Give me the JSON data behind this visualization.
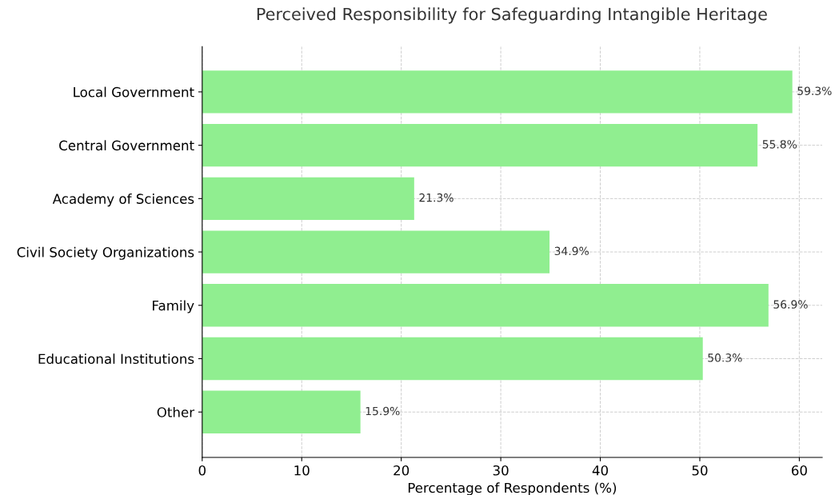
{
  "chart_data": {
    "type": "bar",
    "orientation": "horizontal",
    "title": "Perceived Responsibility for Safeguarding Intangible Heritage",
    "xlabel": "Percentage of Respondents (%)",
    "categories": [
      "Local Government",
      "Central Government",
      "Academy of Sciences",
      "Civil Society Organizations",
      "Family",
      "Educational Institutions",
      "Other"
    ],
    "values": [
      59.3,
      55.8,
      21.3,
      34.9,
      56.9,
      50.3,
      15.9
    ],
    "value_labels": [
      "59.3%",
      "55.8%",
      "21.3%",
      "34.9%",
      "56.9%",
      "50.3%",
      "15.9%"
    ],
    "color": "#90ee90",
    "xlim": [
      0,
      62.3
    ],
    "xticks": [
      0,
      10,
      20,
      30,
      40,
      50,
      60
    ],
    "grid": true
  }
}
